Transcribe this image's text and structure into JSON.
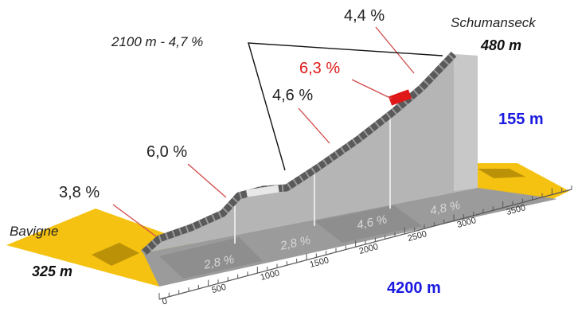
{
  "start": {
    "name": "Bavigne",
    "elevation": "325 m"
  },
  "summit": {
    "name": "Schumanseck",
    "elevation": "480 m"
  },
  "climb": {
    "height_gain": "155 m",
    "total_length": "4200 m"
  },
  "callouts": {
    "p38": "3,8 %",
    "p60": "6,0 %",
    "p46": "4,6 %",
    "p63": "6,3 %",
    "p44": "4,4 %",
    "segment": "2100 m - 4,7 %"
  },
  "section_grades": [
    "2,8 %",
    "2,8 %",
    "4,6 %",
    "4,8 %"
  ],
  "distance_ticks": [
    "0",
    "500",
    "1000",
    "1500",
    "2000",
    "2500",
    "3000",
    "3500"
  ],
  "colors": {
    "road": "#f5c211",
    "profile": "#a6a6a6",
    "steepest": "#e01818",
    "blue_label": "#1a1ae0"
  }
}
